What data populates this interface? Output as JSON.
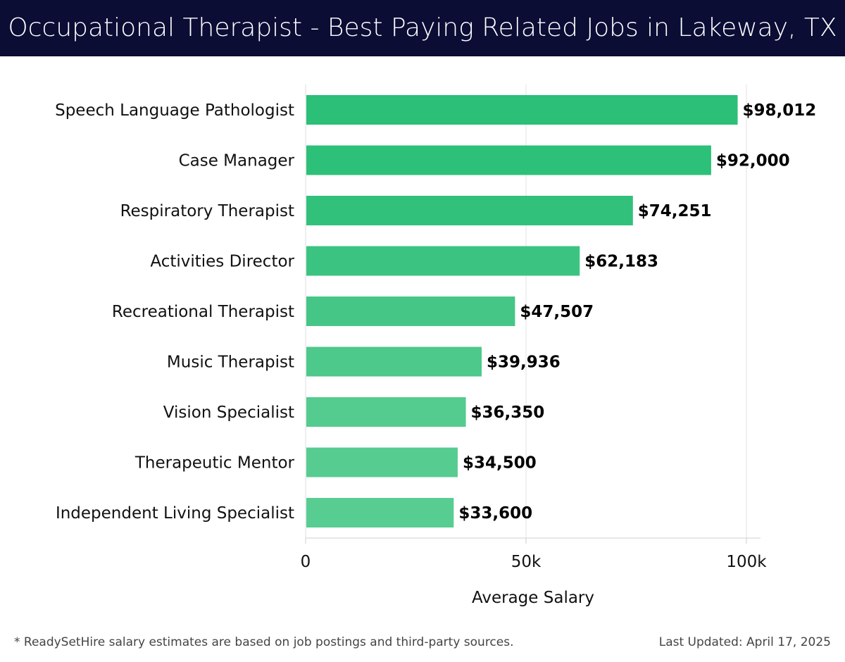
{
  "header": {
    "title": "Occupational Therapist - Best Paying Related Jobs in Lakeway, TX"
  },
  "chart_data": {
    "type": "bar",
    "orientation": "horizontal",
    "categories": [
      "Speech Language Pathologist",
      "Case Manager",
      "Respiratory Therapist",
      "Activities Director",
      "Recreational Therapist",
      "Music Therapist",
      "Vision Specialist",
      "Therapeutic Mentor",
      "Independent Living Specialist"
    ],
    "values": [
      98012,
      92000,
      74251,
      62183,
      47507,
      39936,
      36350,
      34500,
      33600
    ],
    "value_labels": [
      "$98,012",
      "$92,000",
      "$74,251",
      "$62,183",
      "$47,507",
      "$39,936",
      "$36,350",
      "$34,500",
      "$33,600"
    ],
    "xlabel": "Average Salary",
    "ylabel": "",
    "xlim": [
      0,
      103000
    ],
    "xticks": [
      0,
      50000,
      100000
    ],
    "xtick_labels": [
      "0",
      "50k",
      "100k"
    ],
    "grid": "vertical",
    "bar_colors": [
      "#2bbf77",
      "#2dc078",
      "#31c17b",
      "#3bc481",
      "#45c686",
      "#4dc98b",
      "#54cb8f",
      "#56cc91",
      "#58cd92"
    ]
  },
  "footer": {
    "note": "* ReadySetHire salary estimates are based on job postings and third-party sources.",
    "updated": "Last Updated: April 17, 2025"
  }
}
